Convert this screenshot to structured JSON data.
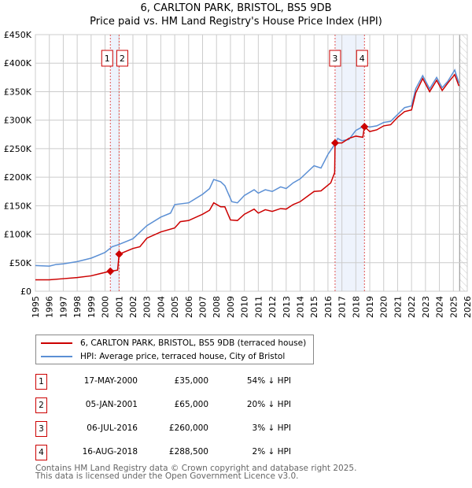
{
  "chart_data": {
    "type": "line",
    "title": "6, CARLTON PARK, BRISTOL, BS5 9DB",
    "subtitle": "Price paid vs. HM Land Registry's House Price Index (HPI)",
    "xlim": [
      1995,
      2026
    ],
    "ylim": [
      0,
      450000
    ],
    "x_ticks": [
      "1995",
      "1996",
      "1997",
      "1998",
      "1999",
      "2000",
      "2001",
      "2002",
      "2003",
      "2004",
      "2005",
      "2006",
      "2007",
      "2008",
      "2009",
      "2010",
      "2011",
      "2012",
      "2013",
      "2014",
      "2015",
      "2016",
      "2017",
      "2018",
      "2019",
      "2020",
      "2021",
      "2022",
      "2023",
      "2024",
      "2025",
      "2026"
    ],
    "y_ticks": [
      "£0",
      "£50K",
      "£100K",
      "£150K",
      "£200K",
      "£250K",
      "£300K",
      "£350K",
      "£400K",
      "£450K"
    ],
    "grid": true,
    "series": [
      {
        "name": "6, CARLTON PARK, BRISTOL, BS5 9DB (terraced house)",
        "color": "#cc0000",
        "points": [
          [
            1995,
            20
          ],
          [
            1996,
            20
          ],
          [
            1997,
            22
          ],
          [
            1998,
            24
          ],
          [
            1999,
            27
          ],
          [
            2000,
            33
          ],
          [
            2000.38,
            35
          ],
          [
            2000.9,
            37
          ],
          [
            2001.01,
            65
          ],
          [
            2002,
            75
          ],
          [
            2002.5,
            78
          ],
          [
            2003,
            93
          ],
          [
            2004,
            104
          ],
          [
            2005,
            111
          ],
          [
            2005.4,
            122
          ],
          [
            2006,
            124
          ],
          [
            2007,
            135
          ],
          [
            2007.5,
            142
          ],
          [
            2007.8,
            155
          ],
          [
            2008.3,
            148
          ],
          [
            2008.6,
            148
          ],
          [
            2009,
            125
          ],
          [
            2009.5,
            124
          ],
          [
            2010,
            135
          ],
          [
            2010.7,
            144
          ],
          [
            2011,
            137
          ],
          [
            2011.5,
            143
          ],
          [
            2012,
            140
          ],
          [
            2012.6,
            145
          ],
          [
            2013,
            144
          ],
          [
            2013.5,
            152
          ],
          [
            2014,
            157
          ],
          [
            2015,
            175
          ],
          [
            2015.5,
            176
          ],
          [
            2016.2,
            190
          ],
          [
            2016.48,
            208
          ],
          [
            2016.51,
            260
          ],
          [
            2017,
            260
          ],
          [
            2017.5,
            268
          ],
          [
            2018,
            272
          ],
          [
            2018.5,
            270
          ],
          [
            2018.62,
            288.5
          ],
          [
            2019,
            280
          ],
          [
            2019.5,
            283
          ],
          [
            2020,
            290
          ],
          [
            2020.5,
            292
          ],
          [
            2021,
            305
          ],
          [
            2021.5,
            315
          ],
          [
            2022,
            318
          ],
          [
            2022.3,
            348
          ],
          [
            2022.8,
            373
          ],
          [
            2023.3,
            350
          ],
          [
            2023.8,
            370
          ],
          [
            2024.2,
            352
          ],
          [
            2024.6,
            365
          ],
          [
            2025.1,
            380
          ],
          [
            2025.4,
            360
          ]
        ]
      },
      {
        "name": "HPI: Average price, terraced house, City of Bristol",
        "color": "#5b8fd4",
        "points": [
          [
            1995,
            45
          ],
          [
            1996,
            44
          ],
          [
            1996.5,
            47
          ],
          [
            1997,
            48
          ],
          [
            1998,
            52
          ],
          [
            1999,
            58
          ],
          [
            2000,
            68
          ],
          [
            2000.5,
            78
          ],
          [
            2001,
            82
          ],
          [
            2002,
            92
          ],
          [
            2003,
            115
          ],
          [
            2004,
            130
          ],
          [
            2004.7,
            137
          ],
          [
            2005,
            152
          ],
          [
            2006,
            155
          ],
          [
            2007,
            170
          ],
          [
            2007.5,
            180
          ],
          [
            2007.8,
            196
          ],
          [
            2008.3,
            192
          ],
          [
            2008.6,
            185
          ],
          [
            2009.1,
            157
          ],
          [
            2009.5,
            155
          ],
          [
            2010,
            168
          ],
          [
            2010.7,
            178
          ],
          [
            2011,
            172
          ],
          [
            2011.5,
            178
          ],
          [
            2012,
            175
          ],
          [
            2012.6,
            183
          ],
          [
            2013,
            180
          ],
          [
            2013.5,
            190
          ],
          [
            2014,
            197
          ],
          [
            2015,
            220
          ],
          [
            2015.5,
            216
          ],
          [
            2016,
            240
          ],
          [
            2016.5,
            258
          ],
          [
            2016.7,
            268
          ],
          [
            2017,
            264
          ],
          [
            2017.5,
            266
          ],
          [
            2018,
            282
          ],
          [
            2018.6,
            290
          ],
          [
            2019,
            288
          ],
          [
            2019.5,
            290
          ],
          [
            2020,
            296
          ],
          [
            2020.5,
            298
          ],
          [
            2021,
            310
          ],
          [
            2021.5,
            322
          ],
          [
            2022,
            325
          ],
          [
            2022.3,
            355
          ],
          [
            2022.8,
            378
          ],
          [
            2023.3,
            355
          ],
          [
            2023.8,
            375
          ],
          [
            2024.2,
            357
          ],
          [
            2024.6,
            368
          ],
          [
            2025.1,
            388
          ],
          [
            2025.4,
            365
          ]
        ]
      }
    ],
    "y_units": "thousands GBP",
    "sales": [
      {
        "n": "1",
        "x": 2000.38,
        "y": 35
      },
      {
        "n": "2",
        "x": 2001.01,
        "y": 65
      },
      {
        "n": "3",
        "x": 2016.51,
        "y": 260
      },
      {
        "n": "4",
        "x": 2018.62,
        "y": 288.5
      }
    ],
    "shaded_ranges": [
      [
        2000.38,
        2001.01
      ],
      [
        2016.51,
        2018.62
      ]
    ],
    "forecast_from": 2025.45
  },
  "table": [
    {
      "n": "1",
      "date": "17-MAY-2000",
      "price": "£35,000",
      "hpi": "54% ↓ HPI"
    },
    {
      "n": "2",
      "date": "05-JAN-2001",
      "price": "£65,000",
      "hpi": "20% ↓ HPI"
    },
    {
      "n": "3",
      "date": "06-JUL-2016",
      "price": "£260,000",
      "hpi": "3% ↓ HPI"
    },
    {
      "n": "4",
      "date": "16-AUG-2018",
      "price": "£288,500",
      "hpi": "2% ↓ HPI"
    }
  ],
  "footer": {
    "line1": "Contains HM Land Registry data © Crown copyright and database right 2025.",
    "line2": "This data is licensed under the Open Government Licence v3.0."
  }
}
